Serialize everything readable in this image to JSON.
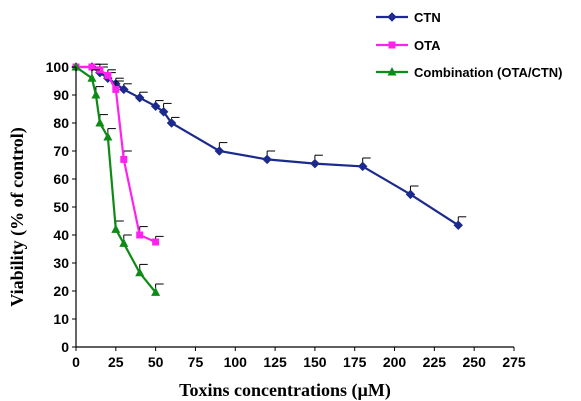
{
  "chart_data": {
    "type": "line",
    "xlabel": "Toxins concentrations (µM)",
    "ylabel": "Viability (% of control)",
    "xlim": [
      0,
      275
    ],
    "ylim": [
      0,
      100
    ],
    "xticks": [
      0,
      25,
      50,
      75,
      100,
      125,
      150,
      175,
      200,
      225,
      250,
      275
    ],
    "yticks": [
      0,
      10,
      20,
      30,
      40,
      50,
      60,
      70,
      80,
      90,
      100
    ],
    "grid": false,
    "legend_position": "top-right",
    "series": [
      {
        "name": "CTN",
        "color": "#1b2a8c",
        "marker": "diamond",
        "x": [
          0,
          10,
          15,
          20,
          25,
          30,
          40,
          50,
          55,
          60,
          90,
          120,
          150,
          180,
          210,
          240
        ],
        "y": [
          100,
          100,
          98,
          96,
          94,
          92,
          89,
          86,
          84,
          80,
          70,
          67,
          65.5,
          64.5,
          54.5,
          43.5
        ],
        "err": [
          0,
          1,
          2,
          2,
          2,
          2,
          2,
          2,
          3,
          2,
          3,
          3,
          3,
          3,
          3,
          3
        ]
      },
      {
        "name": "OTA",
        "color": "#ff22ee",
        "marker": "square",
        "x": [
          0,
          10,
          15,
          20,
          25,
          30,
          40,
          50
        ],
        "y": [
          100,
          100,
          99,
          97,
          92,
          67,
          40,
          37.5
        ],
        "err": [
          0,
          1,
          2,
          2,
          3,
          3,
          3,
          2
        ]
      },
      {
        "name": "Combination (OTA/CTN)",
        "color": "#0e8a16",
        "marker": "triangle",
        "x": [
          0,
          10,
          12.5,
          15,
          20,
          25,
          30,
          40,
          50
        ],
        "y": [
          100,
          96,
          90,
          80,
          75,
          42,
          37,
          26.5,
          19.5
        ],
        "err": [
          0,
          3,
          3,
          3,
          3,
          3,
          3,
          3,
          3
        ]
      }
    ]
  }
}
